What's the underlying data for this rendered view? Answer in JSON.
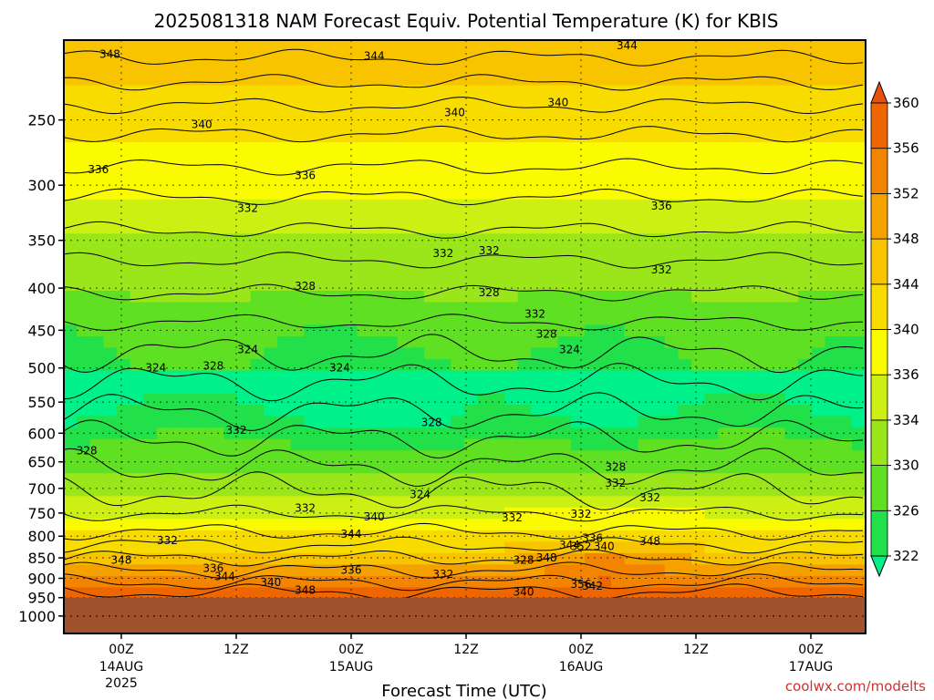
{
  "chart_data": {
    "type": "heatmap",
    "title": "2025081318 NAM Forecast Equiv. Potential Temperature (K) for KBIS",
    "xlabel": "Forecast Time (UTC)",
    "ylabel": "",
    "credit": "coolwx.com/modelts",
    "y_axis": {
      "scale": "log",
      "ylim": [
        1050,
        200
      ],
      "ticks": [
        "250",
        "300",
        "350",
        "400",
        "450",
        "500",
        "550",
        "600",
        "650",
        "700",
        "750",
        "800",
        "850",
        "900",
        "950",
        "1000"
      ]
    },
    "x_axis": {
      "ticks": [
        {
          "label": "00Z",
          "sub": [
            "14AUG",
            "2025"
          ]
        },
        {
          "label": "12Z",
          "sub": []
        },
        {
          "label": "00Z",
          "sub": [
            "15AUG"
          ]
        },
        {
          "label": "12Z",
          "sub": []
        },
        {
          "label": "00Z",
          "sub": [
            "16AUG"
          ]
        },
        {
          "label": "12Z",
          "sub": []
        },
        {
          "label": "00Z",
          "sub": [
            "17AUG"
          ]
        }
      ]
    },
    "colorbar": {
      "levels": [
        322,
        326,
        330,
        334,
        336,
        340,
        344,
        348,
        352,
        356,
        360
      ],
      "colors": [
        "#00f08a",
        "#22e04a",
        "#5fe022",
        "#9ae61a",
        "#ccf014",
        "#fafa00",
        "#f8dc00",
        "#f8c400",
        "#f5a200",
        "#f28400",
        "#ee6600",
        "#e85010"
      ],
      "labels": [
        "322",
        "326",
        "330",
        "334",
        "336",
        "340",
        "344",
        "348",
        "352",
        "356",
        "360"
      ]
    },
    "grid": true,
    "terrain_color": "#a0522d",
    "terrain_pressure": 950,
    "contour_labels": [
      {
        "v": "348",
        "t": -0.1,
        "p": 208
      },
      {
        "v": "344",
        "t": 2.2,
        "p": 209
      },
      {
        "v": "344",
        "t": 4.4,
        "p": 203
      },
      {
        "v": "340",
        "t": 0.7,
        "p": 253
      },
      {
        "v": "340",
        "t": 2.9,
        "p": 245
      },
      {
        "v": "340",
        "t": 3.8,
        "p": 238
      },
      {
        "v": "336",
        "t": -0.2,
        "p": 287
      },
      {
        "v": "336",
        "t": 1.6,
        "p": 292
      },
      {
        "v": "336",
        "t": 4.7,
        "p": 318
      },
      {
        "v": "332",
        "t": 1.1,
        "p": 320
      },
      {
        "v": "332",
        "t": 2.8,
        "p": 363
      },
      {
        "v": "332",
        "t": 3.2,
        "p": 360
      },
      {
        "v": "332",
        "t": 4.7,
        "p": 380
      },
      {
        "v": "328",
        "t": 1.6,
        "p": 398
      },
      {
        "v": "328",
        "t": 3.2,
        "p": 405
      },
      {
        "v": "332",
        "t": 3.6,
        "p": 430
      },
      {
        "v": "328",
        "t": 3.7,
        "p": 455
      },
      {
        "v": "324",
        "t": 3.9,
        "p": 475
      },
      {
        "v": "324",
        "t": 1.1,
        "p": 475
      },
      {
        "v": "324",
        "t": 0.3,
        "p": 500
      },
      {
        "v": "328",
        "t": 0.8,
        "p": 497
      },
      {
        "v": "324",
        "t": 1.9,
        "p": 500
      },
      {
        "v": "332",
        "t": 1.0,
        "p": 595
      },
      {
        "v": "328",
        "t": 2.7,
        "p": 582
      },
      {
        "v": "328",
        "t": -0.3,
        "p": 630
      },
      {
        "v": "328",
        "t": 4.3,
        "p": 660
      },
      {
        "v": "332",
        "t": 4.3,
        "p": 690
      },
      {
        "v": "332",
        "t": 4.6,
        "p": 718
      },
      {
        "v": "324",
        "t": 2.6,
        "p": 712
      },
      {
        "v": "332",
        "t": 1.6,
        "p": 740
      },
      {
        "v": "332",
        "t": 3.4,
        "p": 760
      },
      {
        "v": "332",
        "t": 4.0,
        "p": 752
      },
      {
        "v": "340",
        "t": 2.2,
        "p": 758
      },
      {
        "v": "344",
        "t": 2.0,
        "p": 795
      },
      {
        "v": "332",
        "t": 0.4,
        "p": 810
      },
      {
        "v": "336",
        "t": 4.1,
        "p": 805
      },
      {
        "v": "344",
        "t": 3.9,
        "p": 820
      },
      {
        "v": "352",
        "t": 4.0,
        "p": 823
      },
      {
        "v": "340",
        "t": 4.2,
        "p": 823
      },
      {
        "v": "348",
        "t": 4.6,
        "p": 812
      },
      {
        "v": "348",
        "t": 0.0,
        "p": 855
      },
      {
        "v": "336",
        "t": 0.8,
        "p": 875
      },
      {
        "v": "344",
        "t": 0.9,
        "p": 895
      },
      {
        "v": "340",
        "t": 1.3,
        "p": 910
      },
      {
        "v": "348",
        "t": 1.6,
        "p": 930
      },
      {
        "v": "336",
        "t": 2.0,
        "p": 880
      },
      {
        "v": "332",
        "t": 2.8,
        "p": 890
      },
      {
        "v": "328",
        "t": 3.5,
        "p": 855
      },
      {
        "v": "348",
        "t": 3.7,
        "p": 850
      },
      {
        "v": "356",
        "t": 4.0,
        "p": 915
      },
      {
        "v": "342",
        "t": 4.1,
        "p": 920
      },
      {
        "v": "340",
        "t": 3.5,
        "p": 935
      }
    ]
  }
}
